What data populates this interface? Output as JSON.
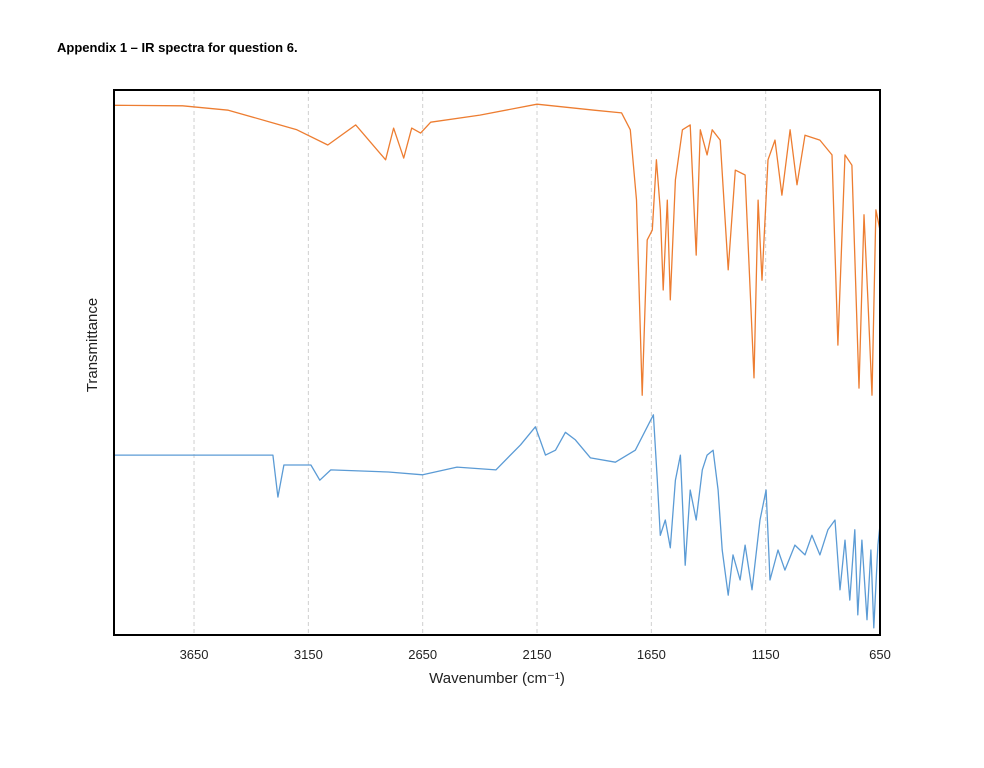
{
  "chart_data": {
    "type": "line",
    "title": "Appendix 1 – IR spectra for question 6.",
    "xlabel": "Wavenumber (cm⁻¹)",
    "ylabel": "Transmittance",
    "xlim": [
      4000,
      650
    ],
    "xticks": [
      3650,
      3150,
      2650,
      2150,
      1650,
      1150,
      650
    ],
    "ylim": [
      0,
      100
    ],
    "grid": true,
    "series": [
      {
        "color": "#ed7d31",
        "x": [
          4000,
          3700,
          3500,
          3300,
          3200,
          3065,
          2943,
          2812,
          2777,
          2733,
          2698,
          2659,
          2615,
          2400,
          2150,
          1900,
          1780,
          1742,
          1715,
          1690,
          1668,
          1646,
          1628,
          1611,
          1598,
          1580,
          1567,
          1545,
          1514,
          1480,
          1454,
          1436,
          1406,
          1384,
          1349,
          1314,
          1283,
          1240,
          1201,
          1183,
          1166,
          1140,
          1109,
          1079,
          1043,
          1013,
          978,
          913,
          860,
          834,
          803,
          773,
          742,
          720,
          703,
          685,
          668,
          650
        ],
        "values": [
          97.2,
          97.1,
          96.3,
          93.9,
          92.7,
          89.9,
          93.6,
          87.2,
          93.0,
          87.5,
          93.0,
          92.1,
          94.1,
          95.4,
          97.4,
          96.3,
          95.8,
          92.7,
          79.8,
          44.0,
          72.5,
          74.3,
          87.2,
          78.0,
          63.3,
          79.8,
          61.5,
          83.5,
          92.7,
          93.6,
          69.7,
          92.7,
          88.1,
          92.7,
          90.8,
          67.0,
          85.3,
          84.4,
          47.2,
          79.8,
          65.1,
          87.2,
          90.8,
          80.7,
          92.7,
          82.6,
          91.7,
          90.8,
          88.1,
          53.2,
          88.1,
          86.2,
          45.3,
          77.1,
          61.5,
          44.0,
          78.0,
          74.3
        ]
      },
      {
        "color": "#5b9bd5",
        "x": [
          4000,
          3700,
          3305,
          3283,
          3257,
          3139,
          3100,
          3052,
          2800,
          2650,
          2500,
          2330,
          2222,
          2157,
          2113,
          2069,
          2026,
          1982,
          1916,
          1807,
          1720,
          1641,
          1624,
          1611,
          1589,
          1567,
          1545,
          1523,
          1502,
          1480,
          1454,
          1427,
          1406,
          1380,
          1358,
          1340,
          1314,
          1293,
          1262,
          1240,
          1210,
          1175,
          1148,
          1131,
          1096,
          1066,
          1022,
          978,
          948,
          913,
          878,
          847,
          825,
          803,
          782,
          760,
          747,
          729,
          707,
          690,
          677,
          659,
          650
        ],
        "values": [
          33.0,
          33.0,
          33.0,
          25.3,
          31.2,
          31.2,
          28.4,
          30.3,
          29.9,
          29.4,
          30.8,
          30.3,
          34.9,
          38.2,
          33.0,
          33.9,
          37.2,
          35.8,
          32.5,
          31.7,
          33.9,
          40.4,
          28.4,
          18.3,
          21.1,
          16.0,
          28.4,
          33.0,
          12.8,
          26.6,
          21.1,
          30.3,
          33.0,
          33.9,
          26.6,
          15.6,
          7.3,
          14.7,
          10.1,
          16.5,
          8.3,
          21.1,
          26.6,
          10.1,
          15.6,
          11.9,
          16.5,
          14.7,
          18.3,
          14.7,
          19.3,
          21.1,
          8.3,
          17.4,
          6.4,
          19.3,
          3.7,
          17.4,
          2.8,
          15.6,
          1.3,
          16.5,
          20.2
        ]
      }
    ]
  }
}
